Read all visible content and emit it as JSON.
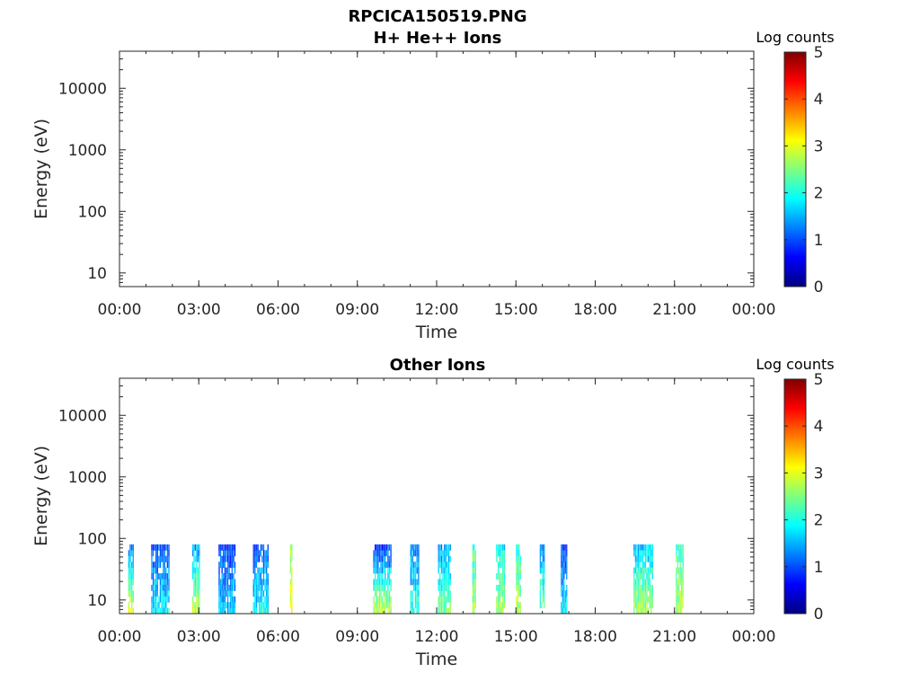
{
  "figure_title": "RPCICA150519.PNG",
  "colormap_stops": [
    "#00007f",
    "#0000ff",
    "#007fff",
    "#00ffff",
    "#7fff7f",
    "#ffff00",
    "#ff7f00",
    "#ff0000",
    "#7f0000"
  ],
  "chart_data": [
    {
      "type": "heatmap",
      "title": "H+ He++ Ions",
      "xlabel": "Time",
      "ylabel": "Energy (eV)",
      "xlim_hours": [
        0,
        24
      ],
      "x_ticks": [
        "00:00",
        "03:00",
        "06:00",
        "09:00",
        "12:00",
        "15:00",
        "18:00",
        "21:00",
        "00:00"
      ],
      "y_scale": "log",
      "ylim": [
        6,
        40000
      ],
      "y_ticks": [
        {
          "value": 10,
          "label": "10"
        },
        {
          "value": 100,
          "label": "100"
        },
        {
          "value": 1000,
          "label": "1000"
        },
        {
          "value": 10000,
          "label": "10000"
        }
      ],
      "colorbar": {
        "label": "Log counts",
        "min": 0,
        "max": 5,
        "ticks": [
          "0",
          "1",
          "2",
          "3",
          "4",
          "5"
        ]
      },
      "segments": []
    },
    {
      "type": "heatmap",
      "title": "Other Ions",
      "xlabel": "Time",
      "ylabel": "Energy (eV)",
      "xlim_hours": [
        0,
        24
      ],
      "x_ticks": [
        "00:00",
        "03:00",
        "06:00",
        "09:00",
        "12:00",
        "15:00",
        "18:00",
        "21:00",
        "00:00"
      ],
      "y_scale": "log",
      "ylim": [
        6,
        40000
      ],
      "y_ticks": [
        {
          "value": 10,
          "label": "10"
        },
        {
          "value": 100,
          "label": "100"
        },
        {
          "value": 1000,
          "label": "1000"
        },
        {
          "value": 10000,
          "label": "10000"
        }
      ],
      "colorbar": {
        "label": "Log counts",
        "min": 0,
        "max": 5,
        "ticks": [
          "0",
          "1",
          "2",
          "3",
          "4",
          "5"
        ]
      },
      "energy_range_ev": [
        6,
        80
      ],
      "segments": [
        {
          "start": 0.33,
          "end": 0.55,
          "level_high": 1.2,
          "level_low": 3.0
        },
        {
          "start": 1.2,
          "end": 1.9,
          "level_high": 1.0,
          "level_low": 1.8
        },
        {
          "start": 2.75,
          "end": 3.05,
          "level_high": 1.4,
          "level_low": 2.8
        },
        {
          "start": 3.75,
          "end": 4.4,
          "level_high": 0.9,
          "level_low": 1.6
        },
        {
          "start": 5.05,
          "end": 5.65,
          "level_high": 1.0,
          "level_low": 1.9
        },
        {
          "start": 6.45,
          "end": 6.55,
          "level_high": 2.6,
          "level_low": 3.0
        },
        {
          "start": 9.6,
          "end": 10.3,
          "level_high": 0.9,
          "level_low": 2.8
        },
        {
          "start": 11.0,
          "end": 11.35,
          "level_high": 1.3,
          "level_low": 2.0
        },
        {
          "start": 12.05,
          "end": 12.55,
          "level_high": 1.4,
          "level_low": 2.4
        },
        {
          "start": 13.35,
          "end": 13.5,
          "level_high": 2.2,
          "level_low": 2.6
        },
        {
          "start": 14.25,
          "end": 14.6,
          "level_high": 1.8,
          "level_low": 2.7
        },
        {
          "start": 15.0,
          "end": 15.2,
          "level_high": 2.0,
          "level_low": 2.8
        },
        {
          "start": 15.9,
          "end": 16.1,
          "level_high": 1.2,
          "level_low": 2.5
        },
        {
          "start": 16.7,
          "end": 16.95,
          "level_high": 0.9,
          "level_low": 1.8
        },
        {
          "start": 19.45,
          "end": 20.2,
          "level_high": 1.6,
          "level_low": 2.7
        },
        {
          "start": 21.05,
          "end": 21.35,
          "level_high": 2.2,
          "level_low": 2.8
        }
      ]
    }
  ]
}
